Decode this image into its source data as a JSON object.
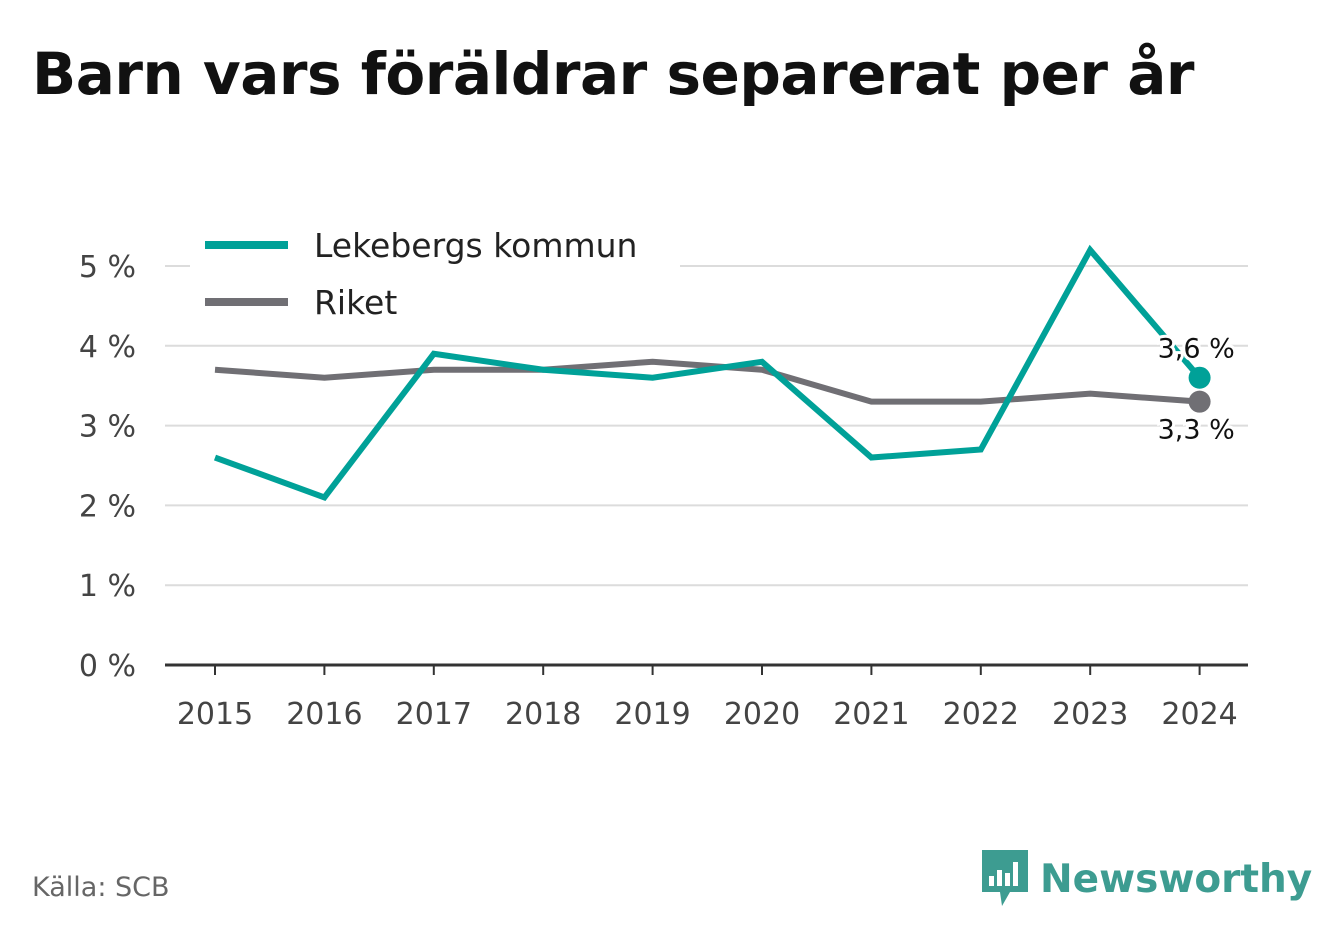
{
  "title": "Barn vars föräldrar separerat per år",
  "source": "Källa: SCB",
  "brand": {
    "name": "Newsworthy",
    "icon": "newsworthy-logo-icon",
    "color": "#3d9c91"
  },
  "chart_data": {
    "type": "line",
    "x": [
      "2015",
      "2016",
      "2017",
      "2018",
      "2019",
      "2020",
      "2021",
      "2022",
      "2023",
      "2024"
    ],
    "series": [
      {
        "name": "Lekebergs kommun",
        "color": "#00a198",
        "values": [
          2.6,
          2.1,
          3.9,
          3.7,
          3.6,
          3.8,
          2.6,
          2.7,
          5.2,
          3.6
        ],
        "end_label": "3,6 %"
      },
      {
        "name": "Riket",
        "color": "#706f74",
        "values": [
          3.7,
          3.6,
          3.7,
          3.7,
          3.8,
          3.7,
          3.3,
          3.3,
          3.4,
          3.3
        ],
        "end_label": "3,3 %"
      }
    ],
    "yticks": [
      0,
      1,
      2,
      3,
      4,
      5
    ],
    "ytick_labels": [
      "0 %",
      "1 %",
      "2 %",
      "3 %",
      "4 %",
      "5 %"
    ],
    "ylim": [
      0,
      5
    ],
    "grid": true,
    "legend_position": "top-left"
  }
}
